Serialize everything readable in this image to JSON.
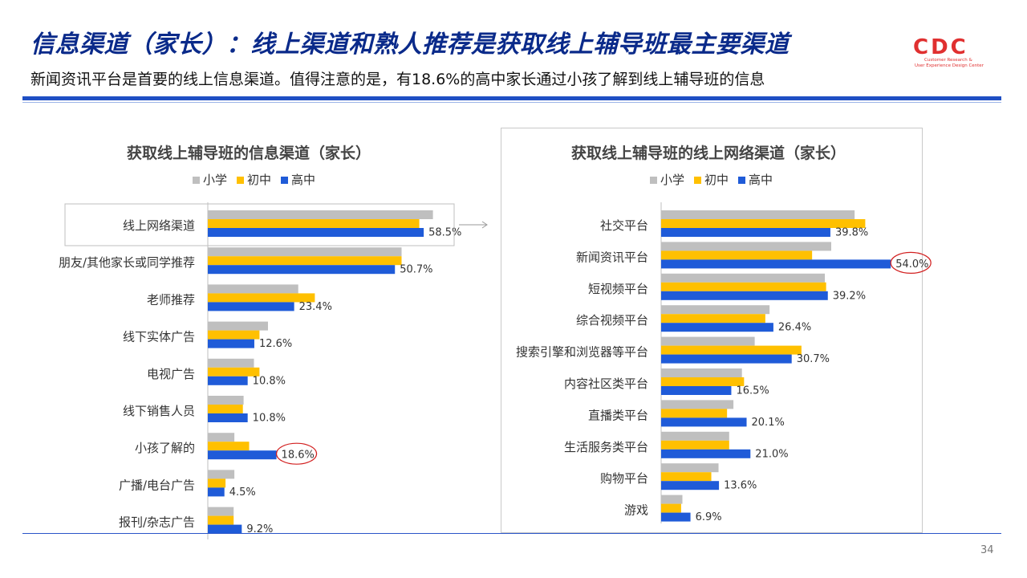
{
  "header": {
    "title": "信息渠道（家长）：线上渠道和熟人推荐是获取线上辅导班最主要渠道",
    "subtitle": "新闻资讯平台是首要的线上信息渠道。值得注意的是，有18.6%的高中家长通过小孩了解到线上辅导班的信息"
  },
  "logo": {
    "mark": "CDC",
    "tagline_1": "Customer Research &",
    "tagline_2": "User Experience Design Center",
    "color": "#e03030"
  },
  "page_number": "34",
  "colors": {
    "primary": "#bfbfbf",
    "middle": "#ffc000",
    "high": "#1f5bd8",
    "title": "#0a2a8a",
    "highlight": "#d22020"
  },
  "chart_data": [
    {
      "type": "bar",
      "orientation": "horizontal",
      "title": "获取线上辅导班的信息渠道（家长）",
      "legend": [
        "小学",
        "初中",
        "高中"
      ],
      "legend_position": "top",
      "categories": [
        "线上网络渠道",
        "朋友/其他家长或同学推荐",
        "老师推荐",
        "线下实体广告",
        "电视广告",
        "线下销售人员",
        "小孩了解的",
        "广播/电台广告",
        "报刊/杂志广告"
      ],
      "series": [
        {
          "name": "小学",
          "values": [
            61.0,
            52.5,
            24.5,
            16.3,
            12.5,
            9.7,
            7.2,
            7.2,
            7.0
          ]
        },
        {
          "name": "初中",
          "values": [
            57.3,
            52.5,
            29.0,
            14.0,
            14.0,
            9.5,
            11.2,
            4.8,
            7.0
          ]
        },
        {
          "name": "高中",
          "values": [
            58.5,
            50.7,
            23.4,
            12.6,
            10.8,
            10.8,
            18.6,
            4.5,
            9.2
          ]
        }
      ],
      "data_labels": [
        "58.5%",
        "50.7%",
        "23.4%",
        "12.6%",
        "10.8%",
        "10.8%",
        "18.6%",
        "4.5%",
        "9.2%"
      ],
      "xlim": [
        0,
        70
      ],
      "highlighted_category": "小孩了解的",
      "boxed_category": "线上网络渠道"
    },
    {
      "type": "bar",
      "orientation": "horizontal",
      "title": "获取线上辅导班的线上网络渠道（家长）",
      "legend": [
        "小学",
        "初中",
        "高中"
      ],
      "legend_position": "top",
      "categories": [
        "社交平台",
        "新闻资讯平台",
        "短视频平台",
        "综合视频平台",
        "搜索引擎和浏览器等平台",
        "内容社区类平台",
        "直播类平台",
        "生活服务类平台",
        "购物平台",
        "游戏"
      ],
      "series": [
        {
          "name": "小学",
          "values": [
            45.5,
            40.0,
            38.5,
            25.5,
            22.0,
            19.0,
            17.0,
            16.0,
            13.5,
            5.0
          ]
        },
        {
          "name": "初中",
          "values": [
            48.0,
            35.5,
            38.8,
            24.5,
            33.0,
            19.5,
            15.5,
            16.0,
            11.8,
            4.7
          ]
        },
        {
          "name": "高中",
          "values": [
            39.8,
            54.0,
            39.2,
            26.4,
            30.7,
            16.5,
            20.1,
            21.0,
            13.6,
            6.9
          ]
        }
      ],
      "data_labels": [
        "39.8%",
        "54.0%",
        "39.2%",
        "26.4%",
        "30.7%",
        "16.5%",
        "20.1%",
        "21.0%",
        "13.6%",
        "6.9%"
      ],
      "xlim": [
        0,
        60
      ],
      "highlighted_category": "新闻资讯平台"
    }
  ]
}
